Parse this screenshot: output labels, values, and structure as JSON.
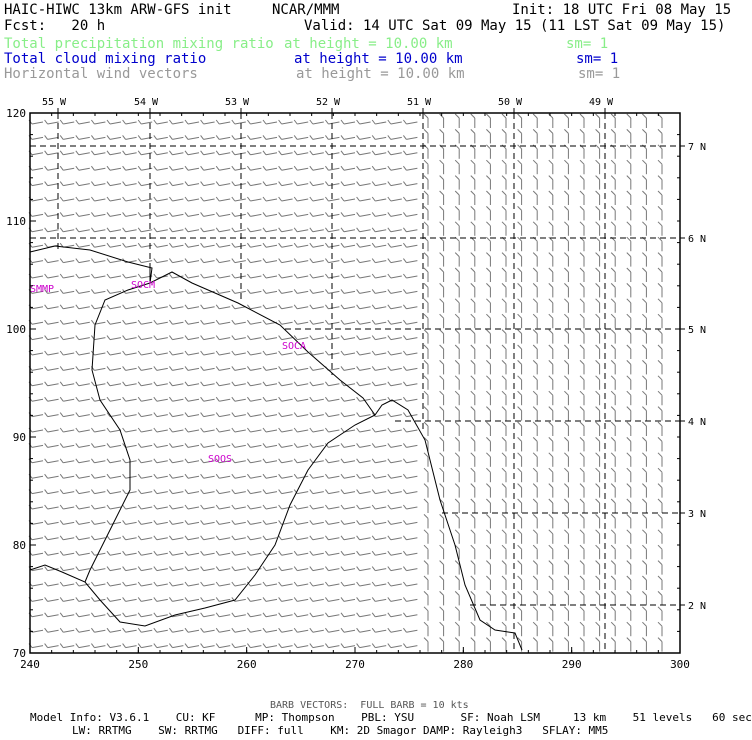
{
  "header": {
    "title": "HAIC-HIWC 13km ARW-GFS init",
    "org": "NCAR/MMM",
    "init": "Init: 18 UTC Fri 08 May 15",
    "fcst": "Fcst:   20 h",
    "valid": "Valid: 14 UTC Sat 09 May 15 (11 LST Sat 09 May 15)",
    "fields": [
      {
        "name": "Total precipitation mixing ratio",
        "level": "at height = 10.00 km",
        "sm": "sm= 1",
        "color": "#88ee88"
      },
      {
        "name": "Total cloud mixing ratio",
        "level": "at height = 10.00 km",
        "sm": "sm= 1",
        "color": "#0000cc"
      },
      {
        "name": "Horizontal wind vectors",
        "level": "at height = 10.00 km",
        "sm": "sm= 1",
        "color": "#999999"
      }
    ]
  },
  "map": {
    "x_ticks": [
      "240",
      "250",
      "260",
      "270",
      "280",
      "290",
      "300"
    ],
    "y_ticks": [
      "70",
      "80",
      "90",
      "100",
      "110",
      "120"
    ],
    "lon_labels": [
      "55 W",
      "54 W",
      "53 W",
      "52 W",
      "51 W",
      "50 W",
      "49 W"
    ],
    "lat_labels": [
      "2 N",
      "3 N",
      "4 N",
      "5 N",
      "6 N",
      "7 N"
    ],
    "stations": [
      "SMMP",
      "SOCM",
      "SOCA",
      "SOOS"
    ],
    "coast_color": "#000000",
    "grid_color": "#000000",
    "barb_color": "#777777"
  },
  "footer": {
    "barb_note": "BARB VECTORS:  FULL BARB = 10 kts",
    "line1": "Model Info: V3.6.1    CU: KF      MP: Thompson    PBL: YSU       SF: Noah LSM     13 km    51 levels   60 sec",
    "line2": "LW: RRTMG    SW: RRTMG   DIFF: full    KM: 2D Smagor DAMP: Rayleigh3   SFLAY: MM5"
  }
}
